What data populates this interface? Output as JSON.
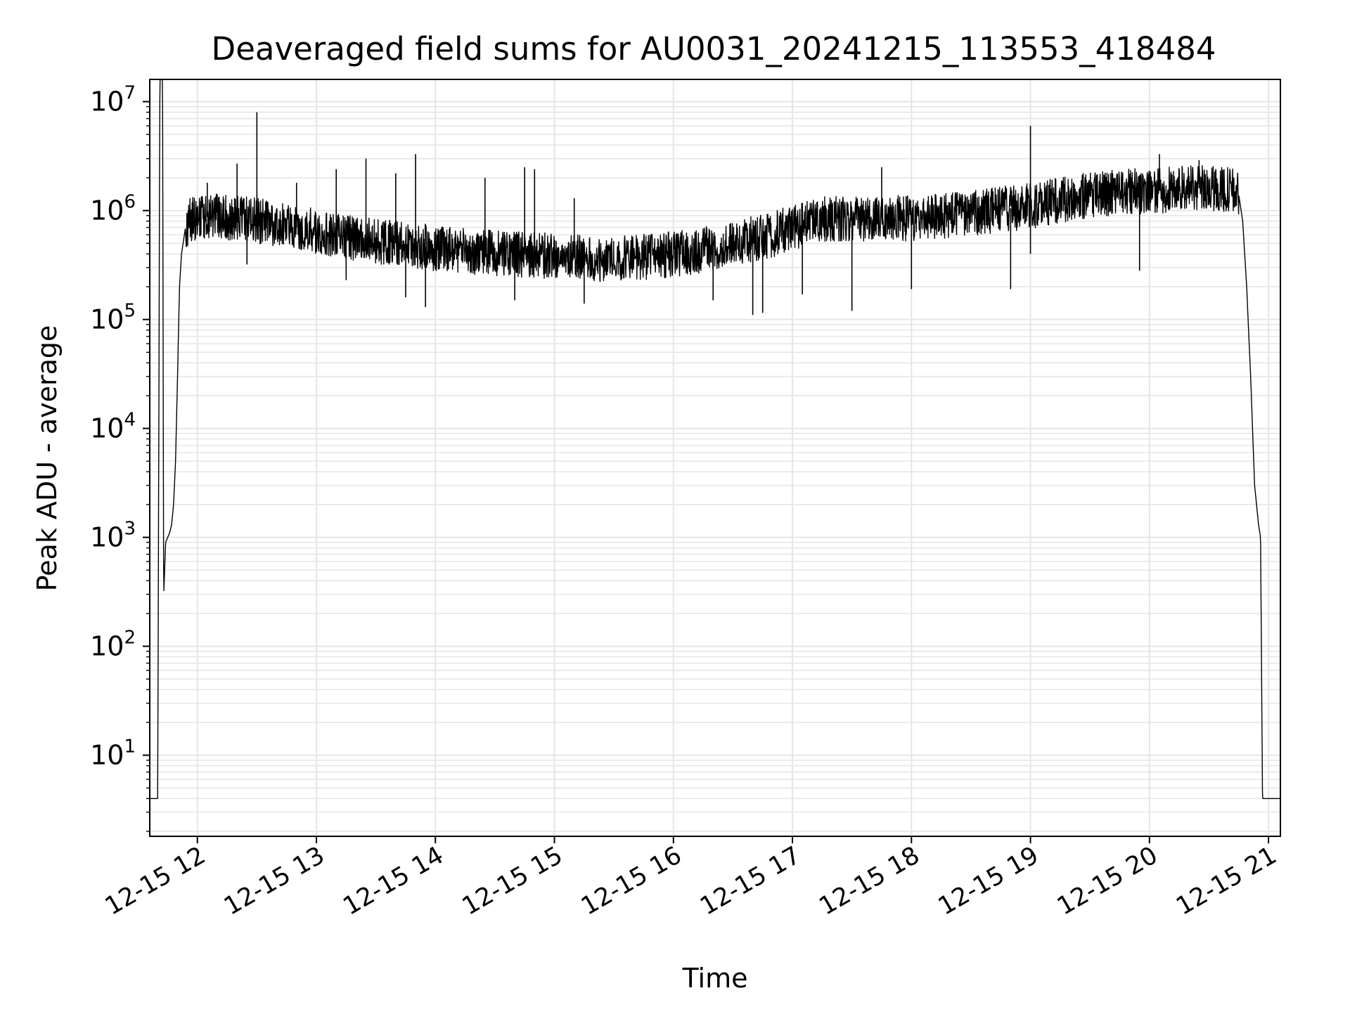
{
  "chart_data": {
    "type": "line",
    "title": "Deaveraged field sums for AU0031_20241215_113553_418484",
    "xlabel": "Time",
    "ylabel": "Peak ADU - average",
    "yscale": "log",
    "ylim": [
      1.8,
      16000000
    ],
    "xlim": [
      "2024-12-15 11:36",
      "2024-12-15 21:06"
    ],
    "grid": true,
    "grid_minor": true,
    "line_color": "#000000",
    "grid_color": "#e6e6e6",
    "x_ticks": [
      "2024-12-15 12:00",
      "2024-12-15 13:00",
      "2024-12-15 14:00",
      "2024-12-15 15:00",
      "2024-12-15 16:00",
      "2024-12-15 17:00",
      "2024-12-15 18:00",
      "2024-12-15 19:00",
      "2024-12-15 20:00",
      "2024-12-15 21:00"
    ],
    "x_tick_labels": [
      "12-15 12",
      "12-15 13",
      "12-15 14",
      "12-15 15",
      "12-15 16",
      "12-15 17",
      "12-15 18",
      "12-15 19",
      "12-15 20",
      "12-15 21"
    ],
    "y_ticks": [
      10,
      100,
      1000,
      10000,
      100000,
      1000000,
      10000000
    ],
    "y_tick_labels": [
      {
        "base": "10",
        "exp": "1"
      },
      {
        "base": "10",
        "exp": "2"
      },
      {
        "base": "10",
        "exp": "3"
      },
      {
        "base": "10",
        "exp": "4"
      },
      {
        "base": "10",
        "exp": "5"
      },
      {
        "base": "10",
        "exp": "6"
      },
      {
        "base": "10",
        "exp": "7"
      }
    ],
    "series": [
      {
        "x": [
          "2024-12-15 11:36",
          "2024-12-15 11:40",
          "2024-12-15 11:41",
          "2024-12-15 11:42",
          "2024-12-15 11:43",
          "2024-12-15 11:44",
          "2024-12-15 11:46",
          "2024-12-15 11:47",
          "2024-12-15 11:48",
          "2024-12-15 11:49",
          "2024-12-15 11:50",
          "2024-12-15 11:51",
          "2024-12-15 11:52",
          "2024-12-15 11:54",
          "2024-12-15 11:56",
          "2024-12-15 12:00",
          "2024-12-15 12:10",
          "2024-12-15 12:20",
          "2024-12-15 12:30",
          "2024-12-15 12:40",
          "2024-12-15 12:50",
          "2024-12-15 13:00",
          "2024-12-15 13:10",
          "2024-12-15 13:20",
          "2024-12-15 13:30",
          "2024-12-15 13:40",
          "2024-12-15 13:50",
          "2024-12-15 14:00",
          "2024-12-15 14:10",
          "2024-12-15 14:20",
          "2024-12-15 14:30",
          "2024-12-15 14:40",
          "2024-12-15 14:50",
          "2024-12-15 15:00",
          "2024-12-15 15:10",
          "2024-12-15 15:20",
          "2024-12-15 15:30",
          "2024-12-15 15:40",
          "2024-12-15 15:50",
          "2024-12-15 16:00",
          "2024-12-15 16:10",
          "2024-12-15 16:20",
          "2024-12-15 16:30",
          "2024-12-15 16:40",
          "2024-12-15 16:50",
          "2024-12-15 17:00",
          "2024-12-15 17:10",
          "2024-12-15 17:20",
          "2024-12-15 17:30",
          "2024-12-15 17:40",
          "2024-12-15 17:50",
          "2024-12-15 18:00",
          "2024-12-15 18:10",
          "2024-12-15 18:20",
          "2024-12-15 18:30",
          "2024-12-15 18:40",
          "2024-12-15 18:50",
          "2024-12-15 19:00",
          "2024-12-15 19:10",
          "2024-12-15 19:20",
          "2024-12-15 19:30",
          "2024-12-15 19:40",
          "2024-12-15 19:50",
          "2024-12-15 20:00",
          "2024-12-15 20:10",
          "2024-12-15 20:20",
          "2024-12-15 20:30",
          "2024-12-15 20:40",
          "2024-12-15 20:45",
          "2024-12-15 20:47",
          "2024-12-15 20:49",
          "2024-12-15 20:51",
          "2024-12-15 20:53",
          "2024-12-15 20:55",
          "2024-12-15 20:56",
          "2024-12-15 20:57",
          "2024-12-15 20:58",
          "2024-12-15 21:06"
        ],
        "y": [
          4,
          4,
          5000000,
          120000000000,
          280,
          900,
          1100,
          1300,
          2000,
          5000,
          30000,
          200000,
          400000,
          700000,
          800000,
          850000,
          900000,
          850000,
          800000,
          750000,
          700000,
          650000,
          600000,
          550000,
          520000,
          500000,
          480000,
          450000,
          430000,
          420000,
          410000,
          400000,
          390000,
          380000,
          370000,
          360000,
          360000,
          370000,
          380000,
          400000,
          420000,
          460000,
          500000,
          550000,
          600000,
          700000,
          800000,
          850000,
          850000,
          850000,
          850000,
          850000,
          870000,
          900000,
          950000,
          1000000,
          1050000,
          1100000,
          1200000,
          1300000,
          1400000,
          1450000,
          1500000,
          1500000,
          1550000,
          1600000,
          1600000,
          1550000,
          1400000,
          800000,
          200000,
          30000,
          3000,
          1300,
          1000,
          4,
          4,
          4
        ],
        "spikes": [
          {
            "x": "2024-12-15 12:05",
            "y": 1800000
          },
          {
            "x": "2024-12-15 12:20",
            "y": 2700000
          },
          {
            "x": "2024-12-15 12:30",
            "y": 8000000
          },
          {
            "x": "2024-12-15 12:50",
            "y": 1800000
          },
          {
            "x": "2024-12-15 13:10",
            "y": 2400000
          },
          {
            "x": "2024-12-15 13:25",
            "y": 3000000
          },
          {
            "x": "2024-12-15 13:40",
            "y": 2200000
          },
          {
            "x": "2024-12-15 13:50",
            "y": 3300000
          },
          {
            "x": "2024-12-15 14:25",
            "y": 2000000
          },
          {
            "x": "2024-12-15 14:45",
            "y": 2500000
          },
          {
            "x": "2024-12-15 14:50",
            "y": 2400000
          },
          {
            "x": "2024-12-15 15:10",
            "y": 1300000
          },
          {
            "x": "2024-12-15 17:45",
            "y": 2500000
          },
          {
            "x": "2024-12-15 19:00",
            "y": 6000000
          },
          {
            "x": "2024-12-15 20:05",
            "y": 3300000
          },
          {
            "x": "2024-12-15 20:25",
            "y": 2900000
          }
        ],
        "dips": [
          {
            "x": "2024-12-15 12:25",
            "y": 320000
          },
          {
            "x": "2024-12-15 13:15",
            "y": 230000
          },
          {
            "x": "2024-12-15 13:45",
            "y": 160000
          },
          {
            "x": "2024-12-15 13:55",
            "y": 130000
          },
          {
            "x": "2024-12-15 14:40",
            "y": 150000
          },
          {
            "x": "2024-12-15 15:15",
            "y": 140000
          },
          {
            "x": "2024-12-15 16:20",
            "y": 150000
          },
          {
            "x": "2024-12-15 16:40",
            "y": 110000
          },
          {
            "x": "2024-12-15 16:45",
            "y": 115000
          },
          {
            "x": "2024-12-15 17:05",
            "y": 170000
          },
          {
            "x": "2024-12-15 17:30",
            "y": 120000
          },
          {
            "x": "2024-12-15 18:00",
            "y": 190000
          },
          {
            "x": "2024-12-15 18:50",
            "y": 190000
          },
          {
            "x": "2024-12-15 19:00",
            "y": 400000
          },
          {
            "x": "2024-12-15 19:55",
            "y": 280000
          }
        ]
      }
    ]
  }
}
